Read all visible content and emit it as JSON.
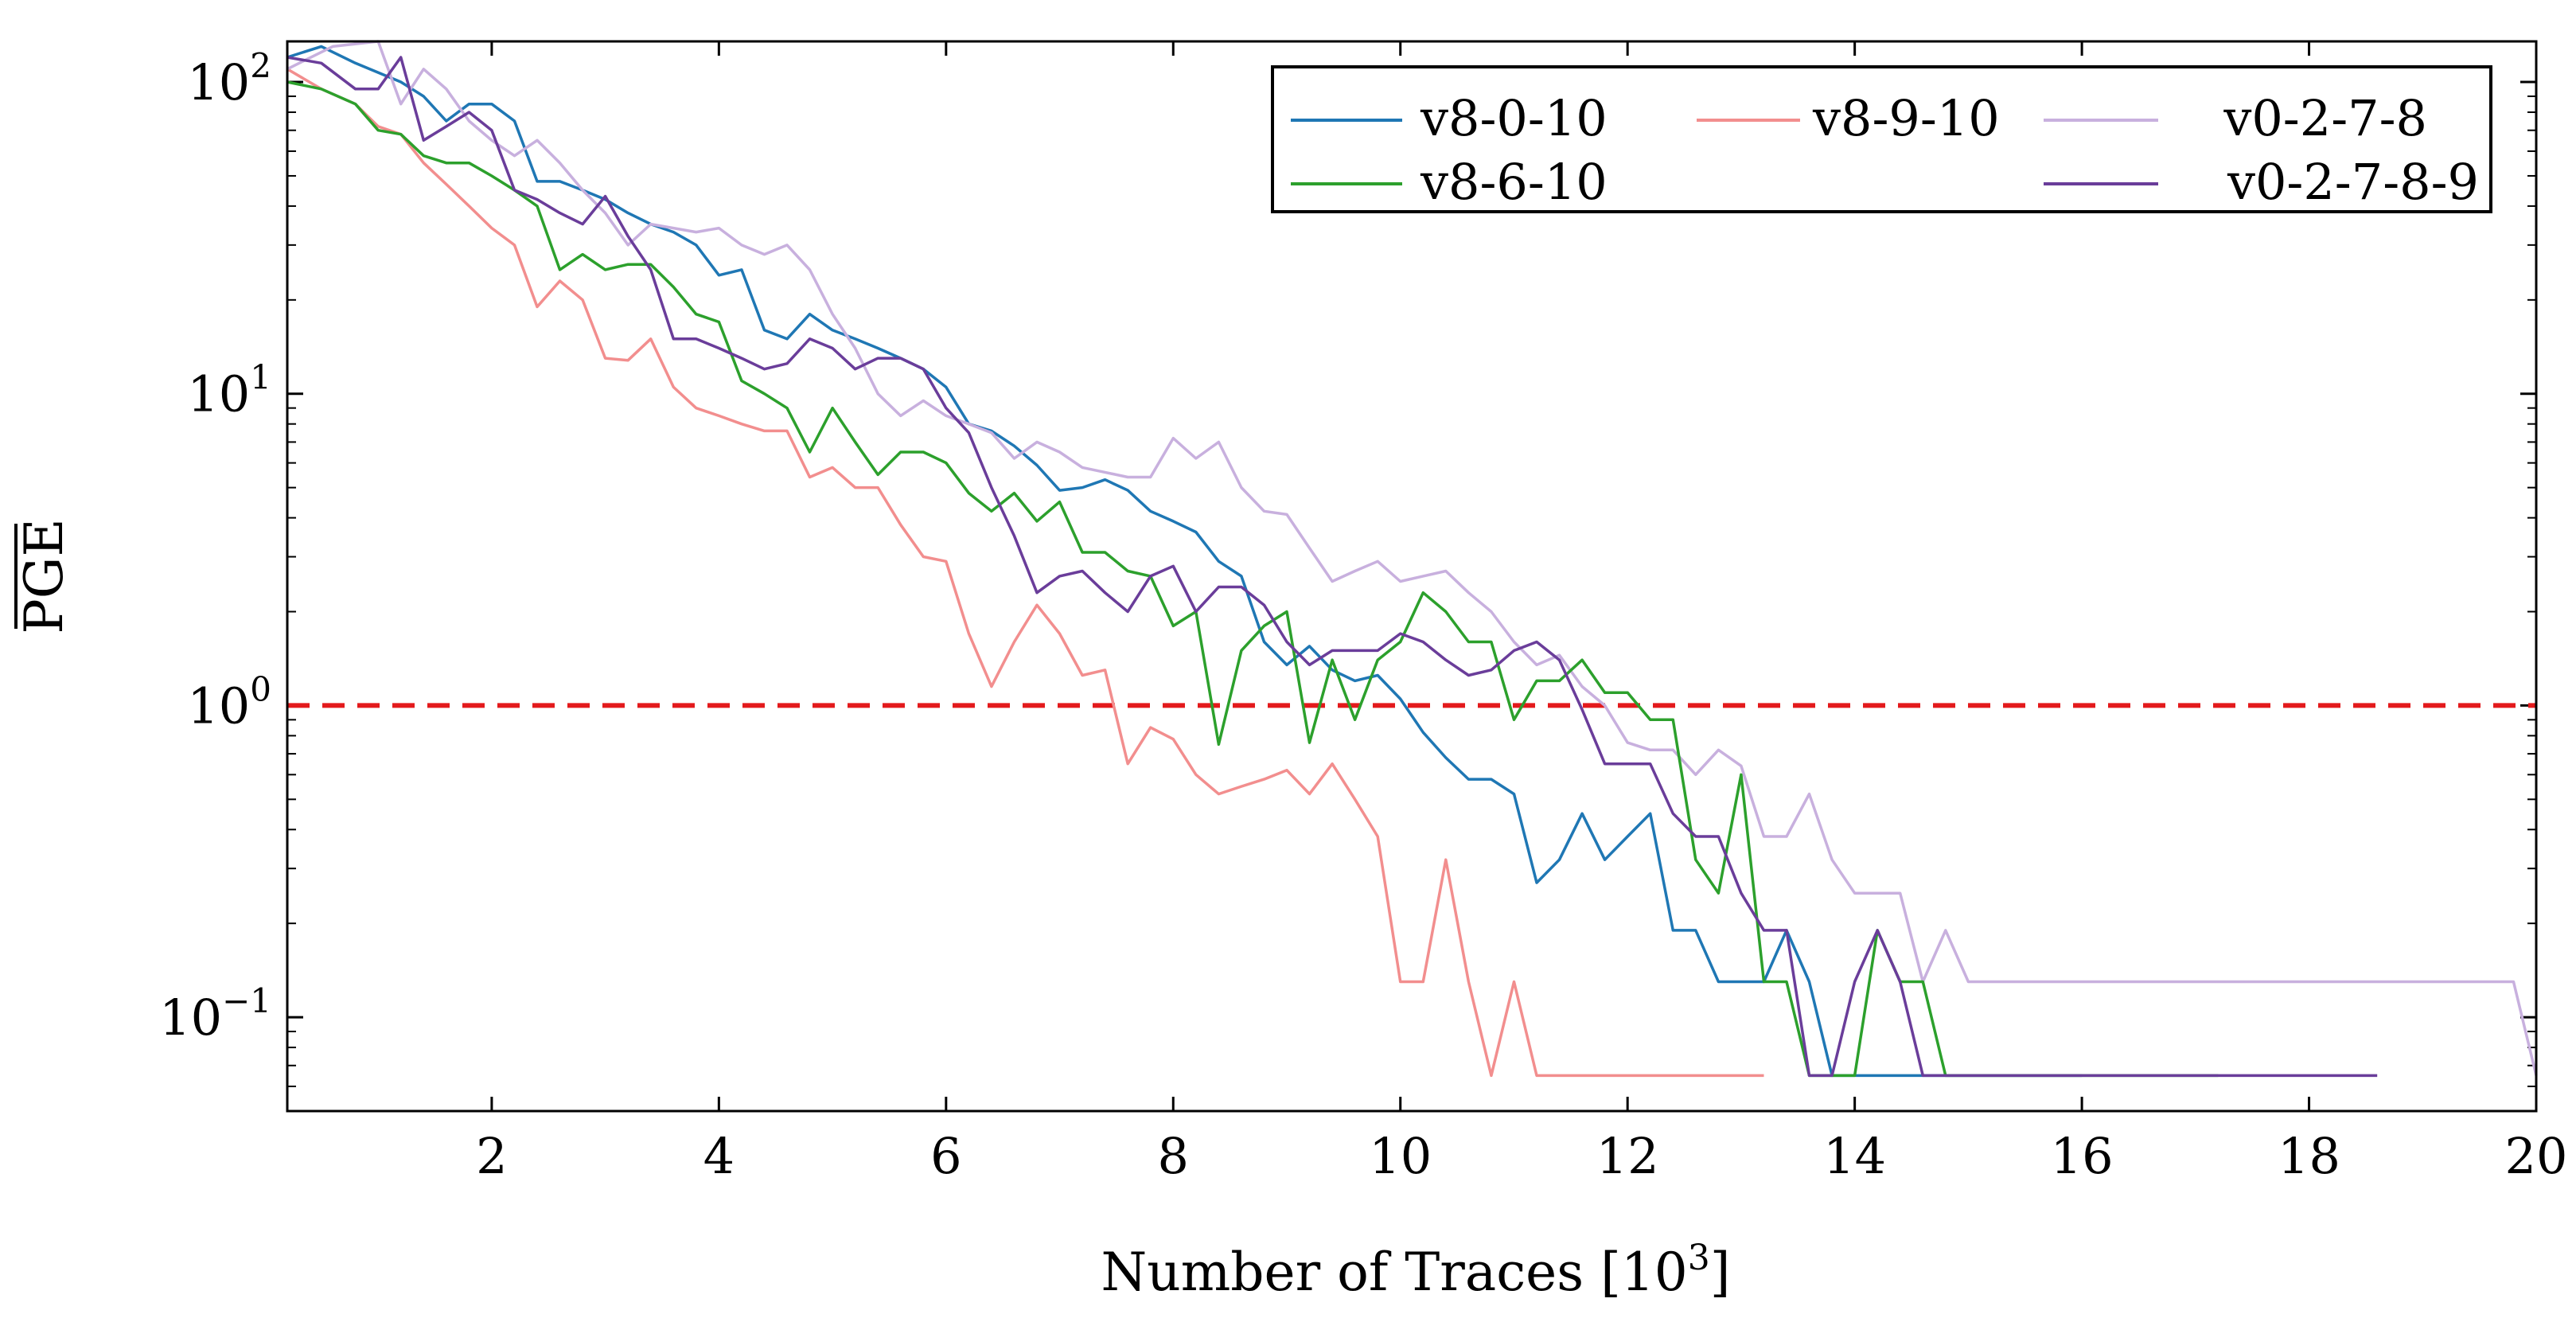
{
  "chart_data": {
    "type": "line",
    "title": "",
    "xlabel": "Number of Traces [10",
    "xlabel_sup": "3",
    "xlabel_suffix": "]",
    "ylabel": "PGE",
    "y_scale": "log",
    "xlim": [
      0.2,
      20
    ],
    "ylim": [
      0.05,
      135
    ],
    "x_ticks": [
      2,
      4,
      6,
      8,
      10,
      12,
      14,
      16,
      18,
      20
    ],
    "x_tick_labels": [
      "2",
      "4",
      "6",
      "8",
      "10",
      "12",
      "14",
      "16",
      "18",
      "20"
    ],
    "y_ticks": [
      {
        "value": 100,
        "base": "10",
        "exp": "2"
      },
      {
        "value": 10,
        "base": "10",
        "exp": "1"
      },
      {
        "value": 1,
        "base": "10",
        "exp": "0"
      },
      {
        "value": 0.1,
        "base": "10",
        "exp": "−1"
      }
    ],
    "threshold": {
      "value": 1,
      "color": "#e31a1c",
      "style": "dashed"
    },
    "legend_position": "top-right",
    "series": [
      {
        "name": "v8-0-10",
        "color": "#1f77b4",
        "x": [
          0.2,
          0.5,
          0.8,
          1.2,
          1.4,
          1.6,
          1.8,
          2.0,
          2.2,
          2.4,
          2.6,
          2.8,
          3.0,
          3.2,
          3.4,
          3.6,
          3.8,
          4.0,
          4.2,
          4.4,
          4.6,
          4.8,
          5.0,
          5.2,
          5.4,
          5.6,
          5.8,
          6.0,
          6.2,
          6.4,
          6.6,
          6.8,
          7.0,
          7.2,
          7.4,
          7.6,
          7.8,
          8.0,
          8.2,
          8.4,
          8.6,
          8.8,
          9.0,
          9.2,
          9.4,
          9.6,
          9.8,
          10.0,
          10.2,
          10.4,
          10.6,
          10.8,
          11.0,
          11.2,
          11.4,
          11.6,
          11.8,
          12.0,
          12.2,
          12.4,
          12.6,
          12.8,
          13.0,
          13.2,
          13.4,
          13.6,
          13.8,
          14.0,
          14.2,
          14.4,
          14.6,
          14.8,
          15.0,
          15.2,
          15.4,
          15.6,
          15.8,
          16.0
        ],
        "y": [
          120,
          130,
          115,
          100,
          90,
          75,
          85,
          85,
          75,
          48,
          48,
          45,
          42,
          38,
          35,
          33,
          30,
          24,
          25,
          16,
          15,
          18,
          16,
          15,
          14,
          13,
          12,
          10.5,
          8,
          7.6,
          6.8,
          5.9,
          4.9,
          5,
          5.3,
          4.9,
          4.2,
          3.9,
          3.6,
          2.9,
          2.6,
          1.6,
          1.35,
          1.55,
          1.3,
          1.2,
          1.25,
          1.05,
          0.82,
          0.68,
          0.58,
          0.58,
          0.52,
          0.27,
          0.32,
          0.45,
          0.32,
          0.38,
          0.45,
          0.19,
          0.19,
          0.13,
          0.13,
          0.13,
          0.19,
          0.13,
          0.065,
          0.065,
          0.065,
          0.065,
          0.065,
          0.065,
          0.065,
          0.065,
          0.065,
          0.065,
          0.065,
          0.065
        ]
      },
      {
        "name": "v8-9-10",
        "color": "#f28e8e",
        "x": [
          0.2,
          0.5,
          0.8,
          1.0,
          1.2,
          1.4,
          1.6,
          1.8,
          2.0,
          2.2,
          2.4,
          2.6,
          2.8,
          3.0,
          3.2,
          3.4,
          3.6,
          3.8,
          4.0,
          4.2,
          4.4,
          4.6,
          4.8,
          5.0,
          5.2,
          5.4,
          5.6,
          5.8,
          6.0,
          6.2,
          6.4,
          6.6,
          6.8,
          7.0,
          7.2,
          7.4,
          7.6,
          7.8,
          8.0,
          8.2,
          8.4,
          8.6,
          8.8,
          9.0,
          9.2,
          9.4,
          9.6,
          9.8,
          10.0,
          10.2,
          10.4,
          10.6,
          10.8,
          11.0,
          11.2,
          11.4,
          11.6,
          11.8,
          12.0,
          12.2,
          12.4,
          12.6,
          12.8,
          13.0,
          13.2
        ],
        "y": [
          110,
          95,
          85,
          72,
          68,
          55,
          47,
          40,
          34,
          30,
          19,
          23,
          20,
          13,
          12.8,
          15,
          10.5,
          9,
          8.5,
          8,
          7.6,
          7.6,
          5.4,
          5.8,
          5,
          5,
          3.8,
          3,
          2.9,
          1.7,
          1.15,
          1.6,
          2.1,
          1.7,
          1.25,
          1.3,
          0.65,
          0.85,
          0.78,
          0.6,
          0.52,
          0.55,
          0.58,
          0.62,
          0.52,
          0.65,
          0.5,
          0.38,
          0.13,
          0.13,
          0.32,
          0.13,
          0.065,
          0.13,
          0.065,
          0.065,
          0.065,
          0.065,
          0.065,
          0.065,
          0.065,
          0.065,
          0.065,
          0.065,
          0.065
        ]
      },
      {
        "name": "v0-2-7-8",
        "color": "#c8b0de",
        "x": [
          0.2,
          0.6,
          1.0,
          1.2,
          1.4,
          1.6,
          1.8,
          2.0,
          2.2,
          2.4,
          2.6,
          2.8,
          3.0,
          3.2,
          3.4,
          3.6,
          3.8,
          4.0,
          4.2,
          4.4,
          4.6,
          4.8,
          5.0,
          5.2,
          5.4,
          5.6,
          5.8,
          6.0,
          6.2,
          6.4,
          6.6,
          6.8,
          7.0,
          7.2,
          7.4,
          7.6,
          7.8,
          8.0,
          8.2,
          8.4,
          8.6,
          8.8,
          9.0,
          9.2,
          9.4,
          9.6,
          9.8,
          10.0,
          10.2,
          10.4,
          10.6,
          10.8,
          11.0,
          11.2,
          11.4,
          11.6,
          11.8,
          12.0,
          12.2,
          12.4,
          12.6,
          12.8,
          13.0,
          13.2,
          13.4,
          13.6,
          13.8,
          14.0,
          14.2,
          14.4,
          14.6,
          14.8,
          15.0,
          15.2,
          15.4,
          15.6,
          15.8,
          16.0,
          16.2,
          16.4,
          16.6,
          16.8,
          17.0,
          17.2,
          17.4,
          17.6,
          17.8,
          18.0,
          18.2,
          18.4,
          18.6,
          18.8,
          19.0,
          19.2,
          19.4,
          19.6,
          19.8,
          20.0
        ],
        "y": [
          110,
          130,
          135,
          85,
          110,
          95,
          75,
          65,
          58,
          65,
          55,
          45,
          38,
          30,
          35,
          34,
          33,
          34,
          30,
          28,
          30,
          25,
          18,
          14,
          10,
          8.5,
          9.5,
          8.5,
          8,
          7.5,
          6.2,
          7,
          6.5,
          5.8,
          5.6,
          5.4,
          5.4,
          7.2,
          6.2,
          7,
          5,
          4.2,
          4.1,
          3.2,
          2.5,
          2.7,
          2.9,
          2.5,
          2.6,
          2.7,
          2.3,
          2.0,
          1.6,
          1.35,
          1.45,
          1.15,
          1.0,
          0.76,
          0.72,
          0.72,
          0.6,
          0.72,
          0.64,
          0.38,
          0.38,
          0.52,
          0.32,
          0.25,
          0.25,
          0.25,
          0.13,
          0.19,
          0.13,
          0.13,
          0.13,
          0.13,
          0.13,
          0.13,
          0.13,
          0.13,
          0.13,
          0.13,
          0.13,
          0.13,
          0.13,
          0.13,
          0.13,
          0.13,
          0.13,
          0.13,
          0.13,
          0.13,
          0.13,
          0.13,
          0.13,
          0.13,
          0.13,
          0.065
        ]
      },
      {
        "name": "v8-6-10",
        "color": "#2ca02c",
        "x": [
          0.2,
          0.5,
          0.8,
          1.0,
          1.2,
          1.4,
          1.6,
          1.8,
          2.0,
          2.2,
          2.4,
          2.6,
          2.8,
          3.0,
          3.2,
          3.4,
          3.6,
          3.8,
          4.0,
          4.2,
          4.4,
          4.6,
          4.8,
          5.0,
          5.2,
          5.4,
          5.6,
          5.8,
          6.0,
          6.2,
          6.4,
          6.6,
          6.8,
          7.0,
          7.2,
          7.4,
          7.6,
          7.8,
          8.0,
          8.2,
          8.4,
          8.6,
          8.8,
          9.0,
          9.2,
          9.4,
          9.6,
          9.8,
          10.0,
          10.2,
          10.4,
          10.6,
          10.8,
          11.0,
          11.2,
          11.4,
          11.6,
          11.8,
          12.0,
          12.2,
          12.4,
          12.6,
          12.8,
          13.0,
          13.2,
          13.4,
          13.6,
          13.8,
          14.0,
          14.2,
          14.4,
          14.6,
          14.8,
          15.0,
          15.2,
          15.4,
          15.6,
          15.8,
          16.0,
          16.2,
          16.4,
          16.6,
          16.8,
          17.0,
          17.2
        ],
        "y": [
          100,
          95,
          85,
          70,
          68,
          58,
          55,
          55,
          50,
          45,
          40,
          25,
          28,
          25,
          26,
          26,
          22,
          18,
          17,
          11,
          10,
          9,
          6.5,
          9,
          7,
          5.5,
          6.5,
          6.5,
          6,
          4.8,
          4.2,
          4.8,
          3.9,
          4.5,
          3.1,
          3.1,
          2.7,
          2.6,
          1.8,
          2.0,
          0.75,
          1.5,
          1.8,
          2.0,
          0.76,
          1.4,
          0.9,
          1.4,
          1.6,
          2.3,
          2.0,
          1.6,
          1.6,
          0.9,
          1.2,
          1.2,
          1.4,
          1.1,
          1.1,
          0.9,
          0.9,
          0.32,
          0.25,
          0.6,
          0.13,
          0.13,
          0.065,
          0.065,
          0.065,
          0.19,
          0.13,
          0.13,
          0.065,
          0.065,
          0.065,
          0.065,
          0.065,
          0.065,
          0.065,
          0.065,
          0.065,
          0.065,
          0.065,
          0.065,
          0.065
        ]
      },
      {
        "name": "v0-2-7-8-9",
        "color": "#6a3d9a",
        "x": [
          0.2,
          0.5,
          0.8,
          1.0,
          1.2,
          1.4,
          1.6,
          1.8,
          2.0,
          2.2,
          2.4,
          2.6,
          2.8,
          3.0,
          3.2,
          3.4,
          3.6,
          3.8,
          4.0,
          4.2,
          4.4,
          4.6,
          4.8,
          5.0,
          5.2,
          5.4,
          5.6,
          5.8,
          6.0,
          6.2,
          6.4,
          6.6,
          6.8,
          7.0,
          7.2,
          7.4,
          7.6,
          7.8,
          8.0,
          8.2,
          8.4,
          8.6,
          8.8,
          9.0,
          9.2,
          9.4,
          9.6,
          9.8,
          10.0,
          10.2,
          10.4,
          10.6,
          10.8,
          11.0,
          11.2,
          11.4,
          11.6,
          11.8,
          12.0,
          12.2,
          12.4,
          12.6,
          12.8,
          13.0,
          13.2,
          13.4,
          13.6,
          13.8,
          14.0,
          14.2,
          14.4,
          14.6,
          14.8,
          15.0,
          15.2,
          15.4,
          15.6,
          15.8,
          16.0,
          16.2,
          16.4,
          16.6,
          16.8,
          17.0,
          17.2,
          17.4,
          17.6,
          17.8,
          18.0,
          18.2,
          18.4,
          18.6
        ],
        "y": [
          120,
          115,
          95,
          95,
          120,
          65,
          72,
          80,
          70,
          45,
          42,
          38,
          35,
          43,
          32,
          25,
          15,
          15,
          14,
          13,
          12,
          12.5,
          15,
          14,
          12,
          13,
          13,
          12,
          9,
          7.5,
          5,
          3.5,
          2.3,
          2.6,
          2.7,
          2.3,
          2.0,
          2.6,
          2.8,
          2.0,
          2.4,
          2.4,
          2.1,
          1.6,
          1.35,
          1.5,
          1.5,
          1.5,
          1.7,
          1.6,
          1.4,
          1.25,
          1.3,
          1.5,
          1.6,
          1.4,
          0.97,
          0.65,
          0.65,
          0.65,
          0.45,
          0.38,
          0.38,
          0.25,
          0.19,
          0.19,
          0.065,
          0.065,
          0.13,
          0.19,
          0.13,
          0.065,
          0.065,
          0.065,
          0.065,
          0.065,
          0.065,
          0.065,
          0.065,
          0.065,
          0.065,
          0.065,
          0.065,
          0.065,
          0.065,
          0.065,
          0.065,
          0.065,
          0.065,
          0.065,
          0.065,
          0.065
        ]
      }
    ]
  }
}
